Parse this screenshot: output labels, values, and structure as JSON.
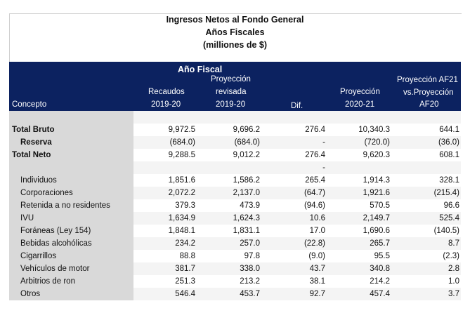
{
  "title": {
    "line1": "Ingresos Netos al Fondo General",
    "line2": "Años Fiscales",
    "line3": "(milliones de $)"
  },
  "header": {
    "group": "Año Fiscal",
    "concepto": "Concepto",
    "col1": [
      "Recaudos",
      "2019-20"
    ],
    "col2": [
      "Proyección",
      "revisada",
      "2019-20"
    ],
    "col3": [
      "Dif."
    ],
    "col4": [
      "Proyección",
      "2020-21"
    ],
    "col5": [
      "Proyección AF21",
      "vs.Proyección",
      "AF20"
    ]
  },
  "colors": {
    "header_bg": "#0c2260",
    "concept_bg": "#d9d9d9"
  },
  "rows": [
    {
      "label": "",
      "values": [
        "",
        "",
        "",
        "",
        ""
      ]
    },
    {
      "label": "Total Bruto",
      "values": [
        "9,972.5",
        "9,696.2",
        "276.4",
        "10,340.3",
        "644.1"
      ]
    },
    {
      "label": "Reserva",
      "values": [
        "(684.0)",
        "(684.0)",
        "-",
        "(720.0)",
        "(36.0)"
      ]
    },
    {
      "label": "Total Neto",
      "values": [
        "9,288.5",
        "9,012.2",
        "276.4",
        "9,620.3",
        "608.1"
      ]
    },
    {
      "label": "",
      "values": [
        "",
        "",
        "-",
        "",
        ""
      ]
    },
    {
      "label": "Individuos",
      "values": [
        "1,851.6",
        "1,586.2",
        "265.4",
        "1,914.3",
        "328.1"
      ]
    },
    {
      "label": "Corporaciones",
      "values": [
        "2,072.2",
        "2,137.0",
        "(64.7)",
        "1,921.6",
        "(215.4)"
      ]
    },
    {
      "label": "Retenida a no residentes",
      "values": [
        "379.3",
        "473.9",
        "(94.6)",
        "570.5",
        "96.6"
      ]
    },
    {
      "label": "IVU",
      "values": [
        "1,634.9",
        "1,624.3",
        "10.6",
        "2,149.7",
        "525.4"
      ]
    },
    {
      "label": "Foráneas (Ley 154)",
      "values": [
        "1,848.1",
        "1,831.1",
        "17.0",
        "1,690.6",
        "(140.5)"
      ]
    },
    {
      "label": "Bebidas alcohólicas",
      "values": [
        "234.2",
        "257.0",
        "(22.8)",
        "265.7",
        "8.7"
      ]
    },
    {
      "label": "Cigarrillos",
      "values": [
        "88.8",
        "97.8",
        "(9.0)",
        "95.5",
        "(2.3)"
      ]
    },
    {
      "label": "Vehículos de motor",
      "values": [
        "381.7",
        "338.0",
        "43.7",
        "340.8",
        "2.8"
      ]
    },
    {
      "label": "Arbitrios de ron",
      "values": [
        "251.3",
        "213.2",
        "38.1",
        "214.2",
        "1.0"
      ]
    },
    {
      "label": "Otros",
      "values": [
        "546.4",
        "453.7",
        "92.7",
        "457.4",
        "3.7"
      ]
    }
  ]
}
